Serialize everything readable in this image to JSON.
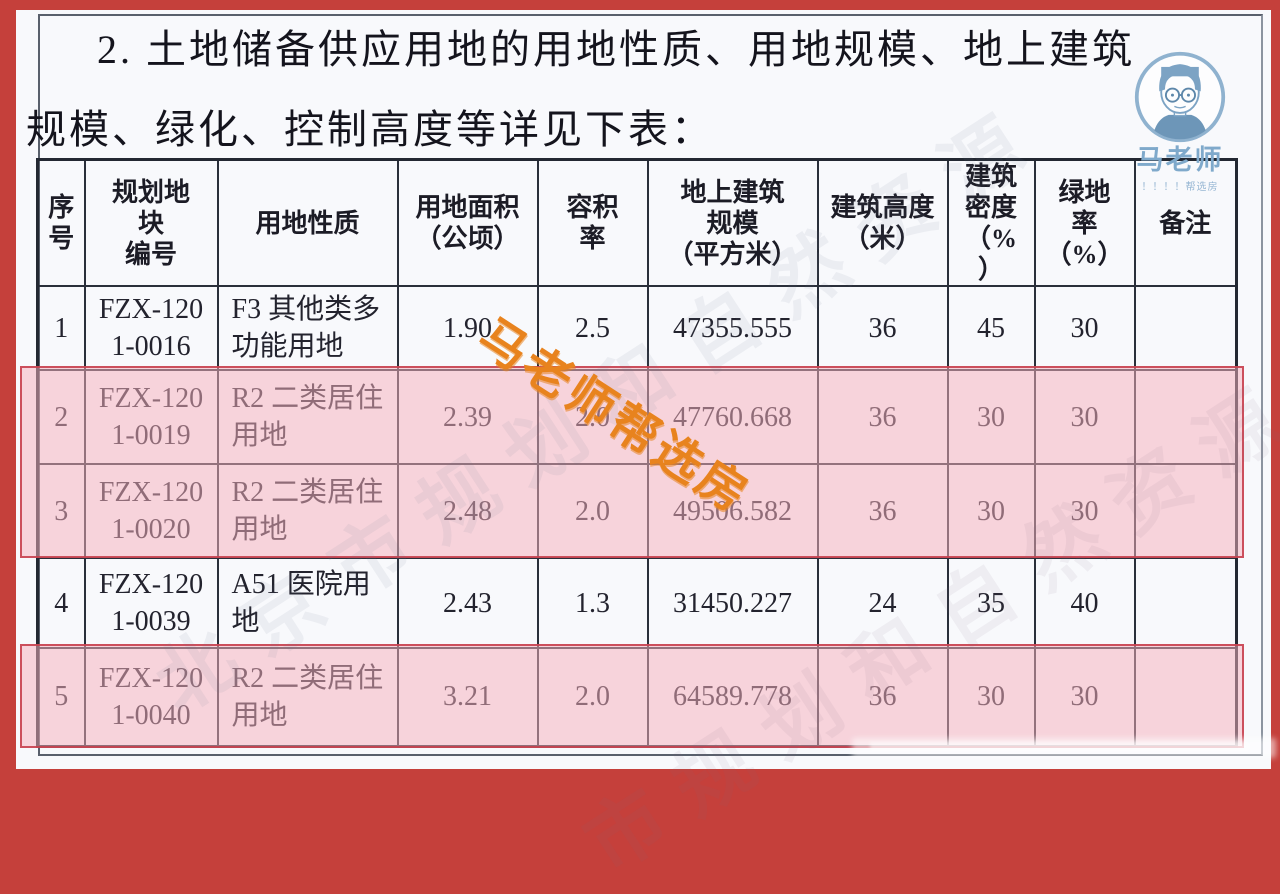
{
  "page": {
    "title_line1": "2. 土地储备供应用地的用地性质、用地规模、地上建筑",
    "title_line2": "规模、绿化、控制高度等详见下表："
  },
  "watermarks": {
    "stamp": "马老师帮选房",
    "faint_official_1": "北京市规划和自然资源",
    "faint_official_2": "市规划和自然资源委",
    "avatar_caption": "马老师",
    "avatar_subcaption": "！！！！帮选房"
  },
  "colors": {
    "frame_red": "#c5403b",
    "highlight_fill": "#f6b1bc",
    "highlight_border": "#c7404e",
    "stamp_orange": "#e8831e",
    "avatar_blue": "#7fa9cb",
    "table_line": "#2a2f3a"
  },
  "table": {
    "headers": [
      "序\n号",
      "规划地\n块\n编号",
      "用地性质",
      "用地面积\n（公顷）",
      "容积\n率",
      "地上建筑\n规模\n（平方米）",
      "建筑高度\n（米）",
      "建筑\n密度\n（%\n）",
      "绿地\n率\n（%）",
      "备注"
    ],
    "rows": [
      {
        "no": "1",
        "plot": "FZX-120\n1-0016",
        "use": "F3 其他类多\n功能用地",
        "area": "1.90",
        "far": "2.5",
        "gfa": "47355.555",
        "height": "36",
        "density": "45",
        "green": "30",
        "note": ""
      },
      {
        "no": "2",
        "plot": "FZX-120\n1-0019",
        "use": "R2 二类居住\n用地",
        "area": "2.39",
        "far": "2.0",
        "gfa": "47760.668",
        "height": "36",
        "density": "30",
        "green": "30",
        "note": ""
      },
      {
        "no": "3",
        "plot": "FZX-120\n1-0020",
        "use": "R2 二类居住\n用地",
        "area": "2.48",
        "far": "2.0",
        "gfa": "49506.582",
        "height": "36",
        "density": "30",
        "green": "30",
        "note": ""
      },
      {
        "no": "4",
        "plot": "FZX-120\n1-0039",
        "use": "A51 医院用\n地",
        "area": "2.43",
        "far": "1.3",
        "gfa": "31450.227",
        "height": "24",
        "density": "35",
        "green": "40",
        "note": ""
      },
      {
        "no": "5",
        "plot": "FZX-120\n1-0040",
        "use": "R2 二类居住\n用地",
        "area": "3.21",
        "far": "2.0",
        "gfa": "64589.778",
        "height": "36",
        "density": "30",
        "green": "30",
        "note": ""
      }
    ],
    "highlighted_row_numbers": [
      "2",
      "3",
      "5"
    ]
  }
}
